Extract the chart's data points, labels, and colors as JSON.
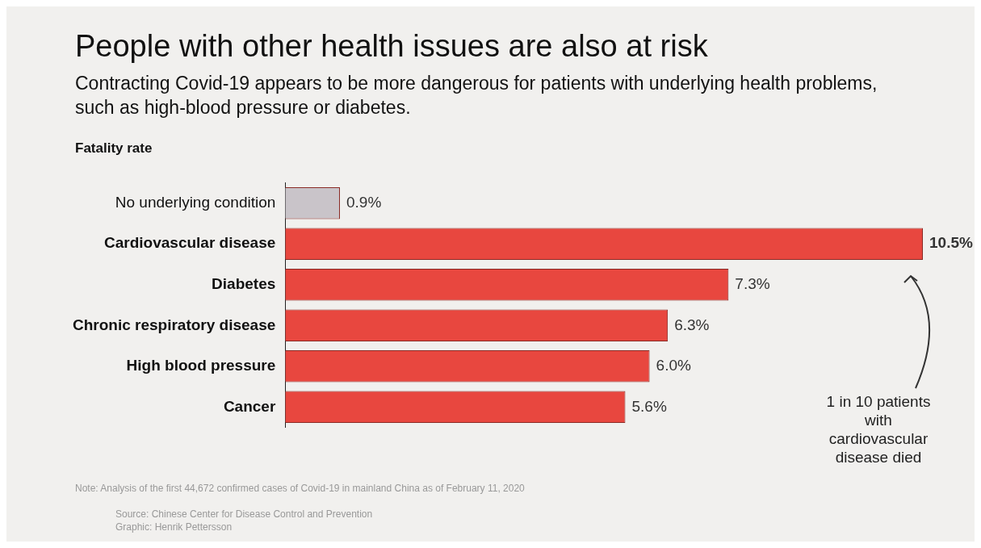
{
  "chart_data": {
    "type": "bar",
    "orientation": "horizontal",
    "title": "People with other health issues are also at risk",
    "subtitle": "Contracting Covid-19 appears to be more dangerous for patients with underlying health problems, such as high-blood pressure or diabetes.",
    "ylabel": "Fatality rate",
    "categories": [
      "No underlying condition",
      "Cardiovascular disease",
      "Diabetes",
      "Chronic respiratory disease",
      "High blood pressure",
      "Cancer"
    ],
    "values": [
      0.9,
      10.5,
      7.3,
      6.3,
      6.0,
      5.6
    ],
    "colors": [
      "#c9c4c9",
      "#e8473f",
      "#e8473f",
      "#e8473f",
      "#e8473f",
      "#e8473f"
    ],
    "value_labels": [
      "0.9%",
      "10.5%",
      "7.3%",
      "6.3%",
      "6.0%",
      "5.6%"
    ],
    "annotations": [
      "1 in 10 patients with cardiovascular disease died",
      "Note: Analysis of the first 44,672 confirmed cases of Covid-19 in mainland China as of February 11, 2020",
      "Source: Chinese Center for Disease Control and Prevention",
      "Graphic: Henrik Pettersson"
    ],
    "grid": false,
    "legend": false
  }
}
